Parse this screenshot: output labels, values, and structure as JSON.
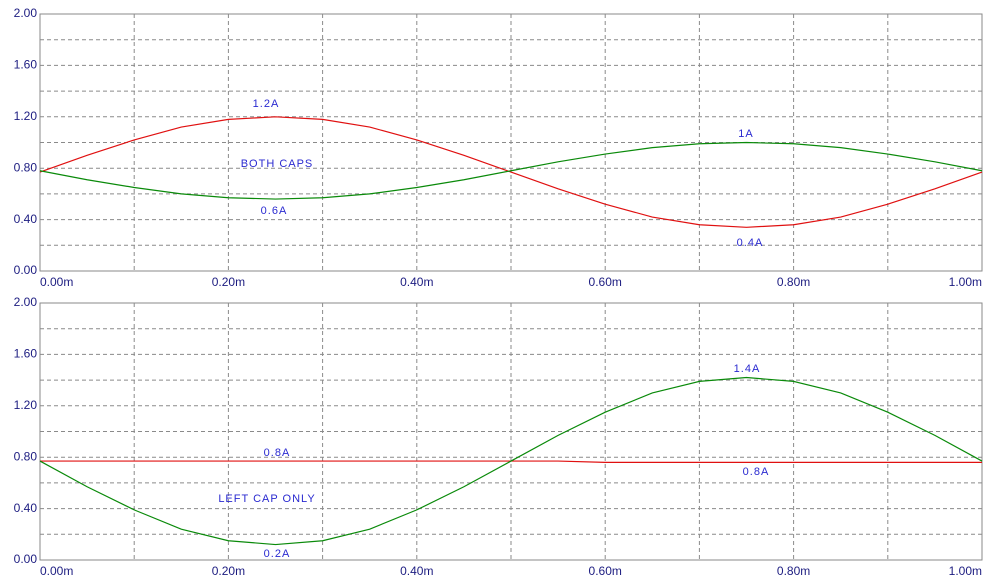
{
  "chart_data": [
    {
      "type": "line",
      "x": [
        0,
        0.05,
        0.1,
        0.15,
        0.2,
        0.25,
        0.3,
        0.35,
        0.4,
        0.45,
        0.5,
        0.55,
        0.6,
        0.65,
        0.7,
        0.75,
        0.8,
        0.85,
        0.9,
        0.95,
        1.0
      ],
      "series": [
        {
          "color": "#e01010",
          "values": [
            0.77,
            0.9,
            1.02,
            1.12,
            1.18,
            1.2,
            1.18,
            1.12,
            1.02,
            0.9,
            0.77,
            0.64,
            0.52,
            0.42,
            0.36,
            0.34,
            0.36,
            0.42,
            0.52,
            0.64,
            0.77
          ]
        },
        {
          "color": "#0a8a0a",
          "values": [
            0.78,
            0.71,
            0.65,
            0.6,
            0.57,
            0.56,
            0.57,
            0.6,
            0.65,
            0.71,
            0.78,
            0.85,
            0.91,
            0.96,
            0.99,
            1.0,
            0.99,
            0.96,
            0.91,
            0.85,
            0.78
          ]
        }
      ],
      "xlim": [
        0,
        1.0
      ],
      "xticks": [
        {
          "value": 0,
          "label": "0.00m"
        },
        {
          "value": 0.2,
          "label": "0.20m"
        },
        {
          "value": 0.4,
          "label": "0.40m"
        },
        {
          "value": 0.6,
          "label": "0.60m"
        },
        {
          "value": 0.8,
          "label": "0.80m"
        },
        {
          "value": 1.0,
          "label": "1.00m"
        }
      ],
      "xminor": [
        0.1,
        0.3,
        0.5,
        0.7,
        0.9
      ],
      "ylim": [
        0,
        2
      ],
      "yticks": [
        {
          "value": 0,
          "label": "0.00"
        },
        {
          "value": 0.4,
          "label": "0.40"
        },
        {
          "value": 0.8,
          "label": "0.80"
        },
        {
          "value": 1.2,
          "label": "1.20"
        },
        {
          "value": 1.6,
          "label": "1.60"
        },
        {
          "value": 2,
          "label": "2.00"
        }
      ],
      "yminor": [
        0.2,
        0.6,
        1,
        1.4,
        1.8
      ],
      "grid": true,
      "annotations": [
        "1.2A",
        "BOTH CAPS",
        "0.6A",
        "1A",
        "0.4A"
      ]
    },
    {
      "type": "line",
      "x": [
        0,
        0.05,
        0.1,
        0.15,
        0.2,
        0.25,
        0.3,
        0.35,
        0.4,
        0.45,
        0.5,
        0.55,
        0.6,
        0.65,
        0.7,
        0.75,
        0.8,
        0.85,
        0.9,
        0.95,
        1.0
      ],
      "series": [
        {
          "color": "#e01010",
          "values": [
            0.77,
            0.77,
            0.77,
            0.77,
            0.77,
            0.77,
            0.77,
            0.77,
            0.77,
            0.77,
            0.77,
            0.77,
            0.76,
            0.76,
            0.76,
            0.76,
            0.76,
            0.76,
            0.76,
            0.76,
            0.76
          ]
        },
        {
          "color": "#0a8a0a",
          "values": [
            0.77,
            0.57,
            0.39,
            0.24,
            0.15,
            0.12,
            0.15,
            0.24,
            0.39,
            0.57,
            0.77,
            0.97,
            1.15,
            1.3,
            1.39,
            1.42,
            1.39,
            1.3,
            1.15,
            0.97,
            0.77
          ]
        }
      ],
      "xlim": [
        0,
        1.0
      ],
      "xticks": [
        {
          "value": 0,
          "label": "0.00m"
        },
        {
          "value": 0.2,
          "label": "0.20m"
        },
        {
          "value": 0.4,
          "label": "0.40m"
        },
        {
          "value": 0.6,
          "label": "0.60m"
        },
        {
          "value": 0.8,
          "label": "0.80m"
        },
        {
          "value": 1.0,
          "label": "1.00m"
        }
      ],
      "xminor": [
        0.1,
        0.3,
        0.5,
        0.7,
        0.9
      ],
      "ylim": [
        0,
        2
      ],
      "yticks": [
        {
          "value": 0,
          "label": "0.00"
        },
        {
          "value": 0.4,
          "label": "0.40"
        },
        {
          "value": 0.8,
          "label": "0.80"
        },
        {
          "value": 1.2,
          "label": "1.20"
        },
        {
          "value": 1.6,
          "label": "1.60"
        },
        {
          "value": 2,
          "label": "2.00"
        }
      ],
      "yminor": [
        0.2,
        0.6,
        1,
        1.4,
        1.8
      ],
      "grid": true,
      "annotations": [
        "1.4A",
        "0.8A",
        "LEFT CAP ONLY",
        "0.2A",
        "0.8A"
      ]
    }
  ]
}
